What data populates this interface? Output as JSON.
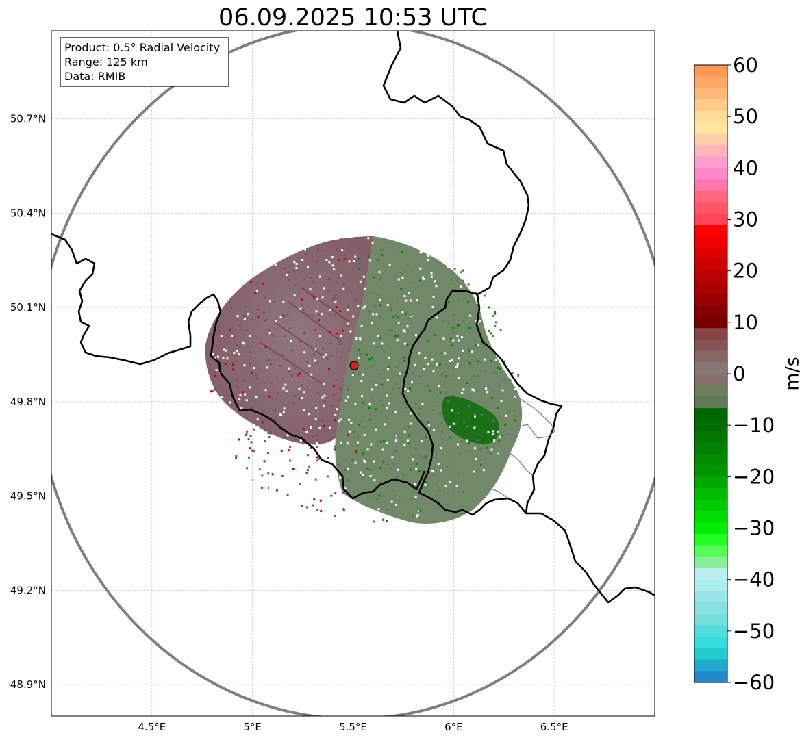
{
  "title": "06.09.2025 10:53 UTC",
  "info_box": {
    "product": "Product: 0.5° Radial Velocity",
    "range": "Range: 125 km",
    "data": "Data: RMIB"
  },
  "map": {
    "lon_range": [
      4.0,
      7.0
    ],
    "lat_range": [
      48.8,
      50.98
    ],
    "x_ticks": [
      {
        "value": 4.5,
        "label": "4.5°E"
      },
      {
        "value": 5.0,
        "label": "5°E"
      },
      {
        "value": 5.5,
        "label": "5.5°E"
      },
      {
        "value": 6.0,
        "label": "6°E"
      },
      {
        "value": 6.5,
        "label": "6.5°E"
      }
    ],
    "y_ticks": [
      {
        "value": 48.9,
        "label": "48.9°N"
      },
      {
        "value": 49.2,
        "label": "49.2°N"
      },
      {
        "value": 49.5,
        "label": "49.5°N"
      },
      {
        "value": 49.8,
        "label": "49.8°N"
      },
      {
        "value": 50.1,
        "label": "50.1°N"
      },
      {
        "value": 50.4,
        "label": "50.4°N"
      },
      {
        "value": 50.7,
        "label": "50.7°N"
      }
    ],
    "grid": true,
    "radar_site": {
      "lon": 5.505,
      "lat": 49.915,
      "color": "#e31a1c"
    },
    "range_ring_km": 125,
    "range_ring_color": "#808080"
  },
  "colorbar": {
    "label": "m/s",
    "min": -60,
    "max": 60,
    "ticks": [
      "60",
      "50",
      "40",
      "30",
      "20",
      "10",
      "0",
      "−10",
      "−20",
      "−30",
      "−40",
      "−50",
      "−60"
    ],
    "colors_top_to_bottom": [
      "#ff9955",
      "#ffa866",
      "#ffb877",
      "#ffc988",
      "#ffdc99",
      "#ffe89e",
      "#ffcfa8",
      "#ffb5b8",
      "#ff9ecc",
      "#ff88cc",
      "#ff77aa",
      "#ff6680",
      "#ff5566",
      "#ff4455",
      "#ff0000",
      "#ee0000",
      "#dd0000",
      "#cc0000",
      "#bb0000",
      "#aa0000",
      "#990000",
      "#880000",
      "#770000",
      "#884444",
      "#885555",
      "#886666",
      "#887777",
      "#887070",
      "#6e8060",
      "#607a58",
      "#006600",
      "#006e00",
      "#007800",
      "#008200",
      "#008c00",
      "#009600",
      "#00a800",
      "#00bb00",
      "#00cc00",
      "#00dd00",
      "#00ee00",
      "#22ff22",
      "#55ff55",
      "#88ee99",
      "#bbeeee",
      "#aaeeee",
      "#99e6e6",
      "#88e0e0",
      "#77dddd",
      "#55dddd",
      "#33dddd",
      "#22cccc",
      "#22aacc",
      "#2288cc"
    ]
  },
  "echo": {
    "approaching_color": "#6b8a60",
    "receding_color": "#8a6873",
    "strong_receding_color": "#8b0000",
    "strong_approaching_color": "#006400"
  }
}
